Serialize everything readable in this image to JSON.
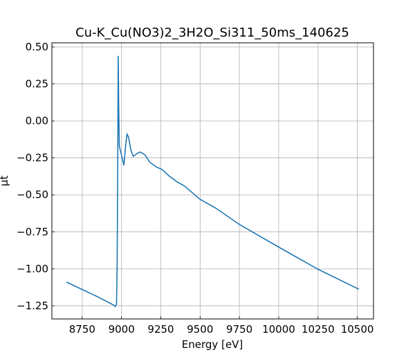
{
  "chart_data": {
    "type": "line",
    "title": "Cu-K_Cu(NO3)2_3H2O_Si311_50ms_140625",
    "xlabel": "Energy [eV]",
    "ylabel": "μt",
    "x": [
      8650,
      8750,
      8850,
      8950,
      8960,
      8968,
      8972,
      8976,
      8979,
      8982,
      8986,
      8993,
      9015,
      9025,
      9035,
      9045,
      9060,
      9075,
      9100,
      9120,
      9150,
      9180,
      9220,
      9260,
      9300,
      9350,
      9400,
      9500,
      9600,
      9750,
      10000,
      10250,
      10510
    ],
    "series": [
      {
        "name": "μt",
        "color": "#1f77b4",
        "values": [
          -1.09,
          -1.14,
          -1.19,
          -1.245,
          -1.255,
          -1.24,
          -1.0,
          -0.3,
          0.44,
          0.1,
          -0.17,
          -0.2,
          -0.3,
          -0.18,
          -0.09,
          -0.11,
          -0.2,
          -0.24,
          -0.22,
          -0.21,
          -0.23,
          -0.28,
          -0.31,
          -0.33,
          -0.37,
          -0.41,
          -0.44,
          -0.53,
          -0.59,
          -0.7,
          -0.853,
          -1.003,
          -1.138
        ]
      }
    ],
    "xlim": [
      8557,
      10603
    ],
    "ylim": [
      -1.339,
      0.528
    ],
    "xticks": [
      8750,
      9000,
      9250,
      9500,
      9750,
      10000,
      10250,
      10500
    ],
    "yticks": [
      {
        "value": 0.5,
        "label": "0.50"
      },
      {
        "value": 0.25,
        "label": "0.25"
      },
      {
        "value": 0,
        "label": "0.00"
      },
      {
        "value": -0.25,
        "label": "−0.25"
      },
      {
        "value": -0.5,
        "label": "−0.50"
      },
      {
        "value": -0.75,
        "label": "−0.75"
      },
      {
        "value": -1,
        "label": "−1.00"
      },
      {
        "value": -1.25,
        "label": "−1.25"
      }
    ],
    "grid": true
  }
}
